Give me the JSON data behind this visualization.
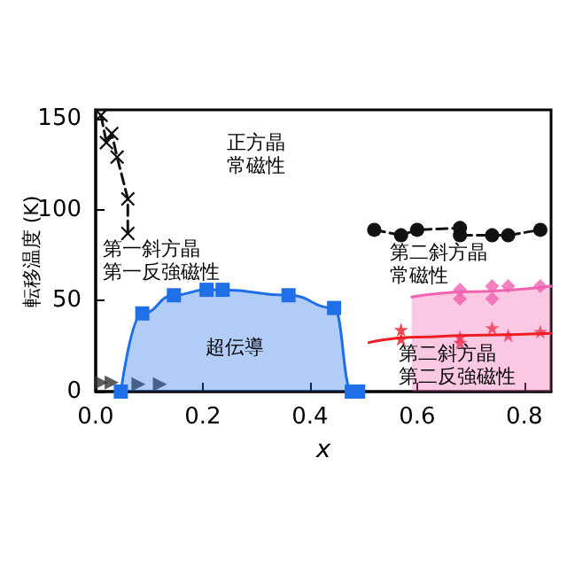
{
  "chart_data": {
    "type": "scatter",
    "xlabel": "x",
    "ylabel": "転移温度 (K)",
    "xlim": [
      0,
      0.85
    ],
    "xticks": [
      {
        "value": 0,
        "label": "0.0"
      },
      {
        "value": 0.2,
        "label": "0.2"
      },
      {
        "value": 0.4,
        "label": "0.4"
      },
      {
        "value": 0.6,
        "label": "0.6"
      },
      {
        "value": 0.8,
        "label": "0.8"
      }
    ],
    "ylim": [
      0,
      155
    ],
    "yticks": [
      0,
      50,
      100,
      150
    ],
    "grid": false,
    "series": [
      {
        "type": "area",
        "color": "#1f6fe8",
        "marker": "square",
        "line_style": "solid",
        "x": [
          0.047,
          0.087,
          0.146,
          0.207,
          0.237,
          0.36,
          0.445,
          0.478,
          0.49
        ],
        "values": [
          0,
          43,
          53,
          56,
          56,
          53,
          46,
          0,
          0
        ]
      },
      {
        "type": "line",
        "color": "#111111",
        "marker": "cross",
        "line_style": "dashed",
        "x": [
          0.01,
          0.02,
          0.03,
          0.04,
          0.06,
          0.06
        ],
        "values": [
          152,
          137,
          142,
          129,
          106,
          87
        ]
      },
      {
        "color": "#333333",
        "marker": "triangle",
        "x": [
          0.01,
          0.03,
          0.08,
          0.12
        ],
        "values": [
          5,
          5,
          4,
          4
        ]
      },
      {
        "type": "line",
        "color": "#111111",
        "marker": "circle",
        "line_style": "dashed",
        "x": [
          0.52,
          0.57,
          0.6,
          0.68,
          0.68,
          0.74,
          0.77,
          0.83
        ],
        "values": [
          89,
          86,
          89,
          90,
          86,
          86,
          86,
          89
        ]
      },
      {
        "type": "area",
        "color": "#f062b0",
        "marker": "none",
        "line_style": "solid",
        "x": [
          0.59,
          0.7,
          0.85
        ],
        "values": [
          52,
          55,
          58
        ]
      },
      {
        "type": "scatter",
        "color": "#f062b0",
        "marker": "diamond",
        "x": [
          0.68,
          0.68,
          0.74,
          0.74,
          0.77,
          0.83
        ],
        "values": [
          56,
          51,
          58,
          51,
          58,
          58
        ]
      },
      {
        "type": "line",
        "color": "#ee1c25",
        "marker": "none",
        "line_style": "solid",
        "x": [
          0.51,
          0.6,
          0.7,
          0.85
        ],
        "values": [
          27,
          30,
          31,
          32
        ]
      },
      {
        "type": "scatter",
        "color": "#ee1c25",
        "marker": "star",
        "x": [
          0.57,
          0.57,
          0.68,
          0.68,
          0.74,
          0.77,
          0.83
        ],
        "values": [
          34,
          29,
          30,
          27,
          35,
          31,
          33
        ]
      }
    ],
    "annotations": [
      "正方晶常磁性",
      "第一斜方晶第一反強磁性",
      "超伝導",
      "第二斜方晶常磁性",
      "第二斜方晶第二反強磁性"
    ]
  }
}
